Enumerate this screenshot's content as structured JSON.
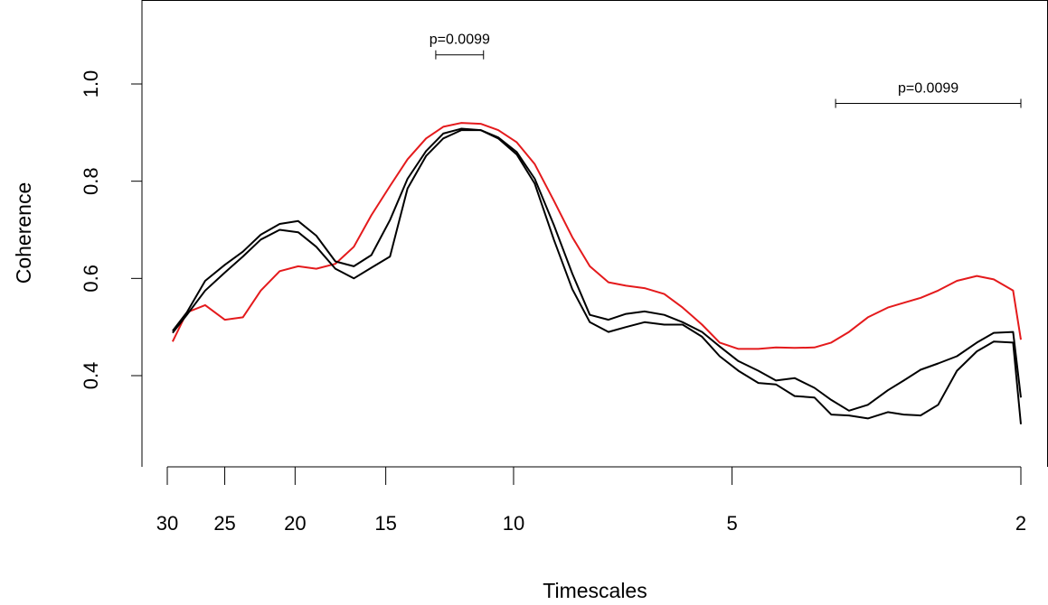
{
  "chart_data": {
    "type": "line",
    "title": "",
    "xlabel": "Timescales",
    "ylabel": "Coherence",
    "x_scale": "log",
    "x_axis_reversed": true,
    "xlim": [
      30,
      2
    ],
    "ylim": [
      0.2,
      1.15
    ],
    "grid": false,
    "box": "left-top-right",
    "x_ticks": [
      {
        "value": 30,
        "label": "30"
      },
      {
        "value": 25,
        "label": "25"
      },
      {
        "value": 20,
        "label": "20"
      },
      {
        "value": 15,
        "label": "15"
      },
      {
        "value": 10,
        "label": "10"
      },
      {
        "value": 5,
        "label": "5"
      },
      {
        "value": 2,
        "label": "2"
      }
    ],
    "y_ticks": [
      {
        "value": 0.4,
        "label": "0.4"
      },
      {
        "value": 0.6,
        "label": "0.6"
      },
      {
        "value": 0.8,
        "label": "0.8"
      },
      {
        "value": 1.0,
        "label": "1.0"
      }
    ],
    "x": [
      29.5,
      28.2,
      26.6,
      25.0,
      23.6,
      22.3,
      21.0,
      19.8,
      18.7,
      17.6,
      16.6,
      15.7,
      14.8,
      14.0,
      13.2,
      12.5,
      11.8,
      11.1,
      10.5,
      9.9,
      9.35,
      8.8,
      8.3,
      7.85,
      7.4,
      7.0,
      6.6,
      6.2,
      5.85,
      5.5,
      5.2,
      4.9,
      4.6,
      4.35,
      4.1,
      3.85,
      3.65,
      3.45,
      3.25,
      3.05,
      2.9,
      2.75,
      2.6,
      2.45,
      2.3,
      2.18,
      2.05,
      2.0
    ],
    "series": [
      {
        "color": "#e41a1c",
        "values": [
          0.47,
          0.53,
          0.545,
          0.515,
          0.52,
          0.575,
          0.615,
          0.625,
          0.62,
          0.63,
          0.665,
          0.73,
          0.79,
          0.845,
          0.888,
          0.912,
          0.92,
          0.918,
          0.905,
          0.88,
          0.835,
          0.76,
          0.685,
          0.625,
          0.592,
          0.585,
          0.58,
          0.568,
          0.54,
          0.505,
          0.468,
          0.455,
          0.455,
          0.458,
          0.457,
          0.458,
          0.468,
          0.49,
          0.52,
          0.54,
          0.55,
          0.56,
          0.575,
          0.595,
          0.605,
          0.598,
          0.575,
          0.474
        ]
      },
      {
        "color": "#000000",
        "values": [
          0.492,
          0.53,
          0.595,
          0.628,
          0.655,
          0.69,
          0.712,
          0.718,
          0.688,
          0.635,
          0.625,
          0.648,
          0.72,
          0.805,
          0.862,
          0.898,
          0.908,
          0.905,
          0.89,
          0.86,
          0.805,
          0.71,
          0.61,
          0.525,
          0.515,
          0.527,
          0.532,
          0.525,
          0.51,
          0.49,
          0.46,
          0.43,
          0.41,
          0.39,
          0.395,
          0.375,
          0.35,
          0.328,
          0.34,
          0.37,
          0.39,
          0.412,
          0.425,
          0.44,
          0.468,
          0.488,
          0.49,
          0.355
        ]
      },
      {
        "color": "#000000",
        "values": [
          0.488,
          0.525,
          0.575,
          0.612,
          0.645,
          0.68,
          0.7,
          0.695,
          0.665,
          0.62,
          0.6,
          0.622,
          0.645,
          0.785,
          0.852,
          0.888,
          0.905,
          0.905,
          0.888,
          0.855,
          0.795,
          0.68,
          0.578,
          0.51,
          0.49,
          0.5,
          0.51,
          0.505,
          0.505,
          0.48,
          0.44,
          0.41,
          0.385,
          0.382,
          0.358,
          0.355,
          0.32,
          0.318,
          0.312,
          0.325,
          0.32,
          0.318,
          0.34,
          0.41,
          0.45,
          0.47,
          0.468,
          0.3
        ]
      }
    ],
    "annotations": [
      {
        "label": "p=0.0099",
        "x_from": 12.8,
        "x_to": 11.0,
        "y": 1.06
      },
      {
        "label": "p=0.0099",
        "x_from": 3.6,
        "x_to": 2.0,
        "y": 0.96
      }
    ]
  }
}
